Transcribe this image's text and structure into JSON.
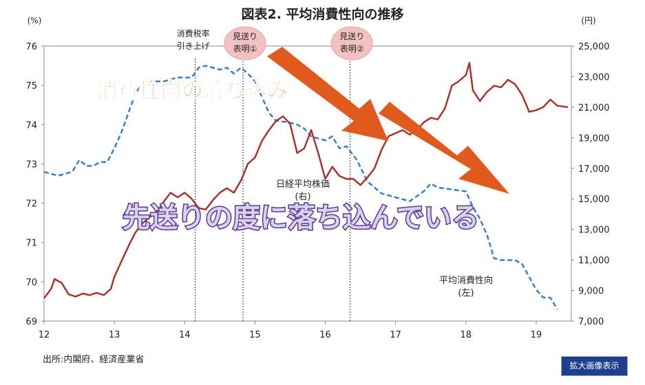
{
  "chart_data": {
    "type": "line",
    "title": "図表2. 平均消費性向の推移",
    "left_unit": "(%)",
    "right_unit": "(円)",
    "x_ticks": [
      "12",
      "13",
      "14",
      "15",
      "16",
      "17",
      "18",
      "19"
    ],
    "x_range": [
      12,
      19.5
    ],
    "y_left": {
      "range": [
        69,
        76
      ],
      "ticks": [
        "69",
        "70",
        "71",
        "72",
        "73",
        "74",
        "75",
        "76"
      ]
    },
    "y_right": {
      "range": [
        7000,
        25000
      ],
      "ticks": [
        "7,000",
        "9,000",
        "11,000",
        "13,000",
        "15,000",
        "17,000",
        "19,000",
        "21,000",
        "23,000",
        "25,000"
      ]
    },
    "grid": false,
    "series": [
      {
        "name": "平均消費性向",
        "label": [
          "平均消費性向",
          "(左)"
        ],
        "axis": "left",
        "color": "#3a7dc9",
        "style": "dashed",
        "points": [
          [
            12.0,
            72.8
          ],
          [
            12.2,
            72.7
          ],
          [
            12.4,
            72.8
          ],
          [
            12.5,
            73.1
          ],
          [
            12.6,
            72.95
          ],
          [
            12.7,
            72.95
          ],
          [
            12.8,
            73.05
          ],
          [
            12.9,
            73.05
          ],
          [
            13.0,
            73.4
          ],
          [
            13.1,
            73.8
          ],
          [
            13.2,
            74.3
          ],
          [
            13.3,
            74.8
          ],
          [
            13.4,
            75.05
          ],
          [
            13.5,
            75.1
          ],
          [
            13.7,
            75.1
          ],
          [
            13.9,
            75.2
          ],
          [
            14.1,
            75.2
          ],
          [
            14.2,
            75.45
          ],
          [
            14.3,
            75.5
          ],
          [
            14.5,
            75.4
          ],
          [
            14.6,
            75.45
          ],
          [
            14.7,
            75.3
          ],
          [
            14.8,
            75.45
          ],
          [
            14.9,
            75.3
          ],
          [
            15.0,
            75.1
          ],
          [
            15.1,
            74.7
          ],
          [
            15.2,
            74.3
          ],
          [
            15.3,
            74.1
          ],
          [
            15.5,
            74.05
          ],
          [
            15.6,
            74.0
          ],
          [
            15.7,
            73.9
          ],
          [
            15.8,
            73.7
          ],
          [
            16.0,
            73.6
          ],
          [
            16.1,
            73.7
          ],
          [
            16.2,
            73.4
          ],
          [
            16.3,
            73.45
          ],
          [
            16.45,
            73.1
          ],
          [
            16.6,
            72.55
          ],
          [
            16.8,
            72.25
          ],
          [
            17.0,
            72.15
          ],
          [
            17.2,
            72.05
          ],
          [
            17.4,
            72.3
          ],
          [
            17.5,
            72.5
          ],
          [
            17.6,
            72.4
          ],
          [
            17.8,
            72.35
          ],
          [
            18.0,
            72.3
          ],
          [
            18.1,
            71.9
          ],
          [
            18.2,
            71.6
          ],
          [
            18.3,
            71.2
          ],
          [
            18.4,
            70.6
          ],
          [
            18.5,
            70.55
          ],
          [
            18.7,
            70.55
          ],
          [
            18.8,
            70.45
          ],
          [
            19.0,
            69.8
          ],
          [
            19.1,
            69.6
          ],
          [
            19.2,
            69.6
          ],
          [
            19.3,
            69.3
          ]
        ]
      },
      {
        "name": "日経平均株価",
        "label": [
          "日経平均株価",
          "(右)"
        ],
        "axis": "right",
        "color": "#a8322c",
        "style": "solid",
        "points": [
          [
            12.0,
            8500
          ],
          [
            12.1,
            9100
          ],
          [
            12.15,
            9750
          ],
          [
            12.25,
            9500
          ],
          [
            12.35,
            8750
          ],
          [
            12.45,
            8600
          ],
          [
            12.55,
            8800
          ],
          [
            12.65,
            8700
          ],
          [
            12.75,
            8850
          ],
          [
            12.85,
            8700
          ],
          [
            12.95,
            9100
          ],
          [
            13.0,
            9900
          ],
          [
            13.1,
            10900
          ],
          [
            13.2,
            11900
          ],
          [
            13.3,
            12800
          ],
          [
            13.4,
            13400
          ],
          [
            13.5,
            13800
          ],
          [
            13.6,
            14100
          ],
          [
            13.7,
            14800
          ],
          [
            13.8,
            15400
          ],
          [
            13.9,
            15100
          ],
          [
            14.0,
            15400
          ],
          [
            14.1,
            15000
          ],
          [
            14.2,
            14400
          ],
          [
            14.3,
            14300
          ],
          [
            14.4,
            14900
          ],
          [
            14.5,
            15400
          ],
          [
            14.6,
            15700
          ],
          [
            14.7,
            15400
          ],
          [
            14.8,
            16200
          ],
          [
            14.9,
            17300
          ],
          [
            15.0,
            17700
          ],
          [
            15.1,
            18800
          ],
          [
            15.2,
            19500
          ],
          [
            15.3,
            20100
          ],
          [
            15.4,
            20400
          ],
          [
            15.5,
            19900
          ],
          [
            15.6,
            18000
          ],
          [
            15.7,
            18300
          ],
          [
            15.8,
            19500
          ],
          [
            15.9,
            18000
          ],
          [
            16.0,
            16300
          ],
          [
            16.1,
            17100
          ],
          [
            16.2,
            16500
          ],
          [
            16.3,
            16300
          ],
          [
            16.4,
            16300
          ],
          [
            16.5,
            15900
          ],
          [
            16.6,
            16400
          ],
          [
            16.7,
            17000
          ],
          [
            16.8,
            18200
          ],
          [
            16.9,
            19100
          ],
          [
            17.0,
            19300
          ],
          [
            17.1,
            19500
          ],
          [
            17.2,
            19200
          ],
          [
            17.3,
            19500
          ],
          [
            17.4,
            20000
          ],
          [
            17.5,
            20300
          ],
          [
            17.6,
            20200
          ],
          [
            17.7,
            20900
          ],
          [
            17.8,
            22400
          ],
          [
            17.9,
            22700
          ],
          [
            18.0,
            23100
          ],
          [
            18.05,
            23900
          ],
          [
            18.1,
            22100
          ],
          [
            18.2,
            21400
          ],
          [
            18.3,
            22000
          ],
          [
            18.4,
            22400
          ],
          [
            18.5,
            22300
          ],
          [
            18.6,
            22800
          ],
          [
            18.7,
            22500
          ],
          [
            18.8,
            21800
          ],
          [
            18.9,
            20700
          ],
          [
            19.0,
            20800
          ],
          [
            19.1,
            21000
          ],
          [
            19.2,
            21500
          ],
          [
            19.3,
            21100
          ],
          [
            19.45,
            21000
          ]
        ]
      }
    ],
    "events": [
      {
        "x": 14.15,
        "label": [
          "消費税率",
          "引き上げ"
        ]
      },
      {
        "x": 14.83,
        "label": [
          "見送り",
          "表明①"
        ]
      },
      {
        "x": 16.35,
        "label": [
          "見送り",
          "表明②"
        ]
      }
    ],
    "overlay_text": {
      "orange": "消費性向の落ち込み",
      "purple": "先送りの度に落ち込んでいる"
    },
    "source": "出所:内閣府、経済産業省"
  },
  "ui": {
    "expand_button": "拡大画像表示"
  }
}
